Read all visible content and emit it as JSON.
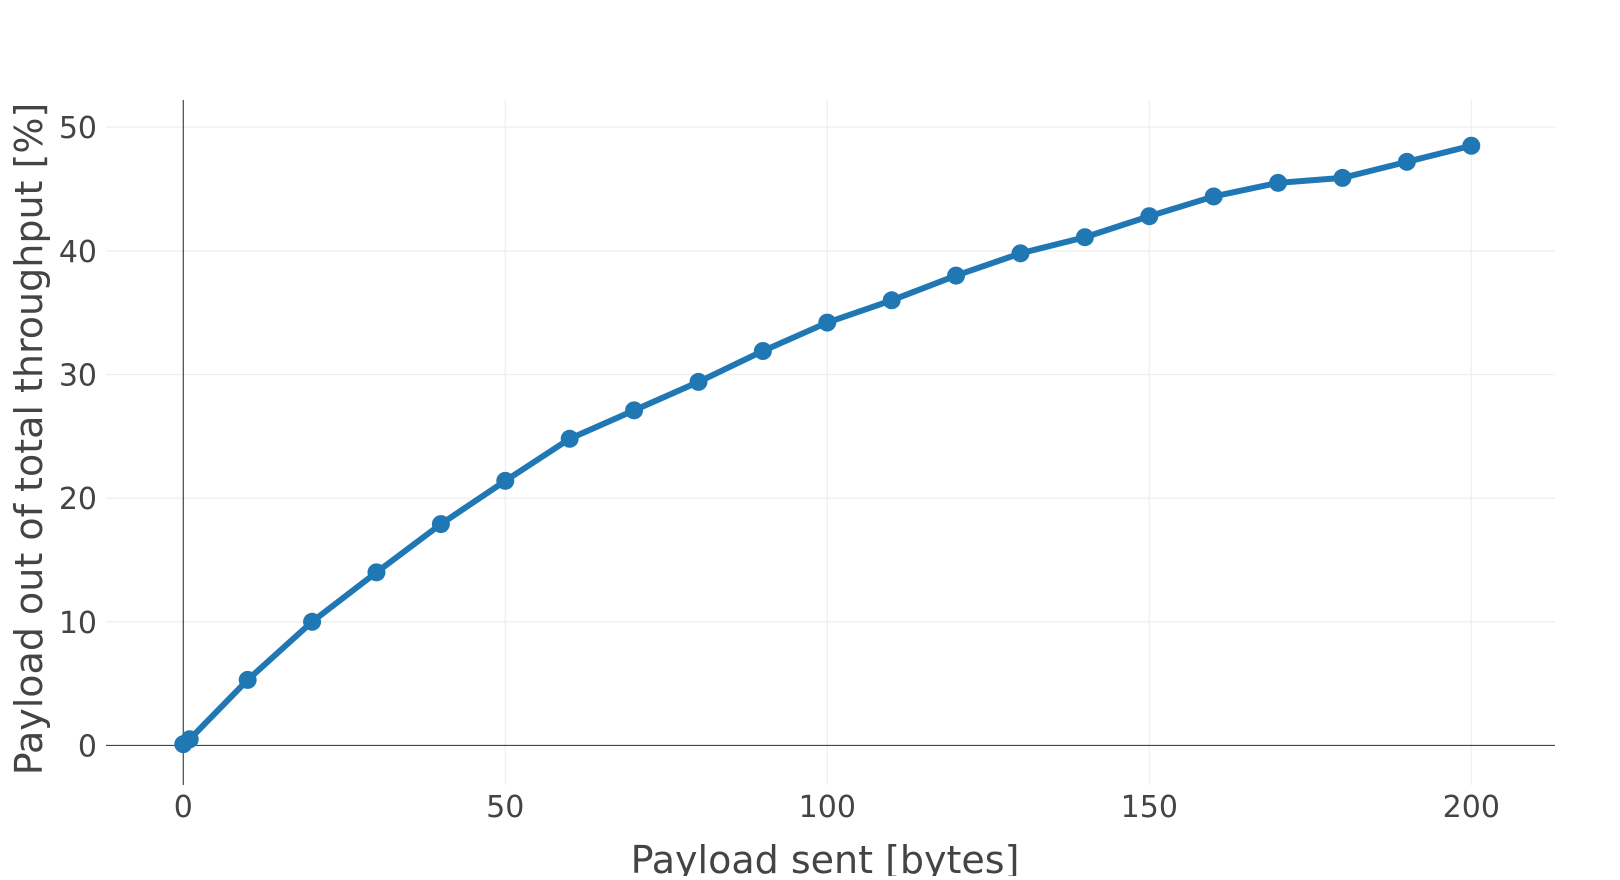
{
  "chart_data": {
    "type": "line",
    "title": "",
    "xlabel": "Payload sent [bytes]",
    "ylabel": "Payload out of total throughput [%]",
    "xlim": [
      -12,
      213
    ],
    "ylim": [
      -3.2,
      52.2
    ],
    "x_ticks": [
      0,
      50,
      100,
      150,
      200
    ],
    "y_ticks": [
      0,
      10,
      20,
      30,
      40,
      50
    ],
    "x_tick_labels": [
      "0",
      "50",
      "100",
      "150",
      "200"
    ],
    "y_tick_labels": [
      "0",
      "10",
      "20",
      "30",
      "40",
      "50"
    ],
    "grid": true,
    "legend": "none",
    "colors": {
      "series": "#1f77b4",
      "grid": "#eeeeee",
      "axis": "#444444",
      "text": "#444444"
    },
    "series": [
      {
        "x": [
          0,
          1,
          10,
          20,
          30,
          40,
          50,
          60,
          70,
          80,
          90,
          100,
          110,
          120,
          130,
          140,
          150,
          160,
          170,
          180,
          190,
          200
        ],
        "y": [
          0.1,
          0.5,
          5.3,
          10.0,
          14.0,
          17.9,
          21.4,
          24.8,
          27.1,
          29.4,
          31.9,
          34.2,
          36.0,
          38.0,
          39.8,
          41.1,
          42.8,
          44.4,
          45.5,
          45.9,
          47.2,
          48.5
        ]
      }
    ]
  }
}
